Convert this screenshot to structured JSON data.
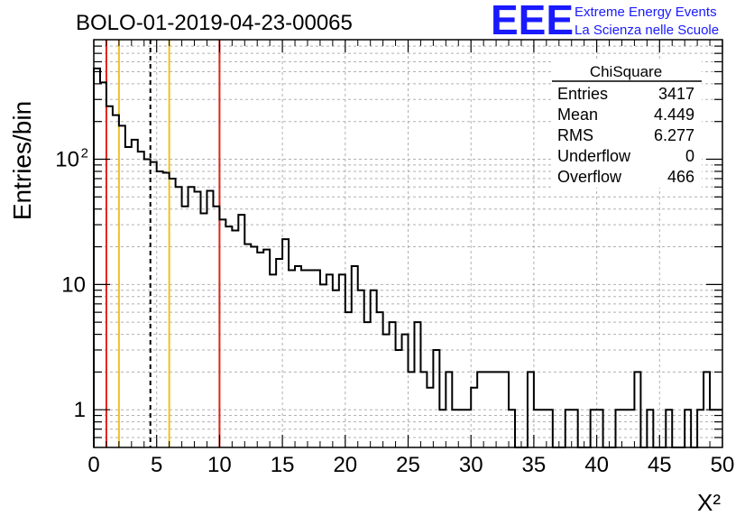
{
  "chart_data": {
    "type": "histogram",
    "title": "BOLO-01-2019-04-23-00065",
    "xlabel": "X²",
    "ylabel": "Entries/bin",
    "x_range": [
      0,
      50
    ],
    "y_range": [
      0.5,
      900
    ],
    "y_scale": "log",
    "grid": true,
    "bin_width": 0.5,
    "x_ticks": [
      0,
      5,
      10,
      15,
      20,
      25,
      30,
      35,
      40,
      45,
      50
    ],
    "x_tick_labels": [
      "0",
      "5",
      "10",
      "15",
      "20",
      "25",
      "30",
      "35",
      "40",
      "45",
      "50"
    ],
    "y_tick_labels": [
      {
        "value": 1,
        "label": "1"
      },
      {
        "value": 10,
        "label": "10"
      },
      {
        "value": 100,
        "label": "10",
        "exponent": "2"
      }
    ],
    "counts": [
      530,
      410,
      265,
      225,
      185,
      125,
      143,
      115,
      100,
      95,
      80,
      78,
      70,
      60,
      42,
      60,
      55,
      37,
      56,
      42,
      33,
      29,
      27,
      36,
      21,
      20,
      18,
      19,
      12,
      16,
      23,
      13,
      14,
      13,
      13,
      13,
      10,
      12,
      9,
      12,
      6,
      14,
      9,
      5,
      9,
      6,
      4,
      5,
      3,
      4,
      2,
      5,
      2,
      1.5,
      3,
      1,
      2,
      1,
      1,
      1,
      1.5,
      2,
      2,
      2,
      2,
      2,
      1,
      0,
      0,
      2,
      1,
      1,
      1,
      0,
      0,
      1,
      1,
      0,
      0,
      1,
      1,
      0,
      0,
      1,
      1,
      1,
      2,
      0,
      1,
      0,
      0,
      1,
      0,
      0,
      1,
      0,
      1,
      2,
      1,
      1
    ],
    "vertical_lines": [
      {
        "x": 1,
        "color": "#e32219",
        "style": "solid"
      },
      {
        "x": 2,
        "color": "#f0c020",
        "style": "solid"
      },
      {
        "x": 4.5,
        "color": "#000000",
        "style": "dashed"
      },
      {
        "x": 6,
        "color": "#f0c020",
        "style": "solid"
      },
      {
        "x": 10,
        "color": "#e32219",
        "style": "solid"
      }
    ],
    "stats_box": {
      "title": "ChiSquare",
      "rows": [
        {
          "label": "Entries",
          "value": "3417"
        },
        {
          "label": "Mean",
          "value": "4.449"
        },
        {
          "label": "RMS",
          "value": "6.277"
        },
        {
          "label": "Underflow",
          "value": "0"
        },
        {
          "label": "Overflow",
          "value": "466"
        }
      ]
    }
  },
  "logo": {
    "letters": "EEE",
    "line1": "Extreme Energy Events",
    "line2": "La Scienza nelle Scuole",
    "color": "#1a1aff"
  }
}
